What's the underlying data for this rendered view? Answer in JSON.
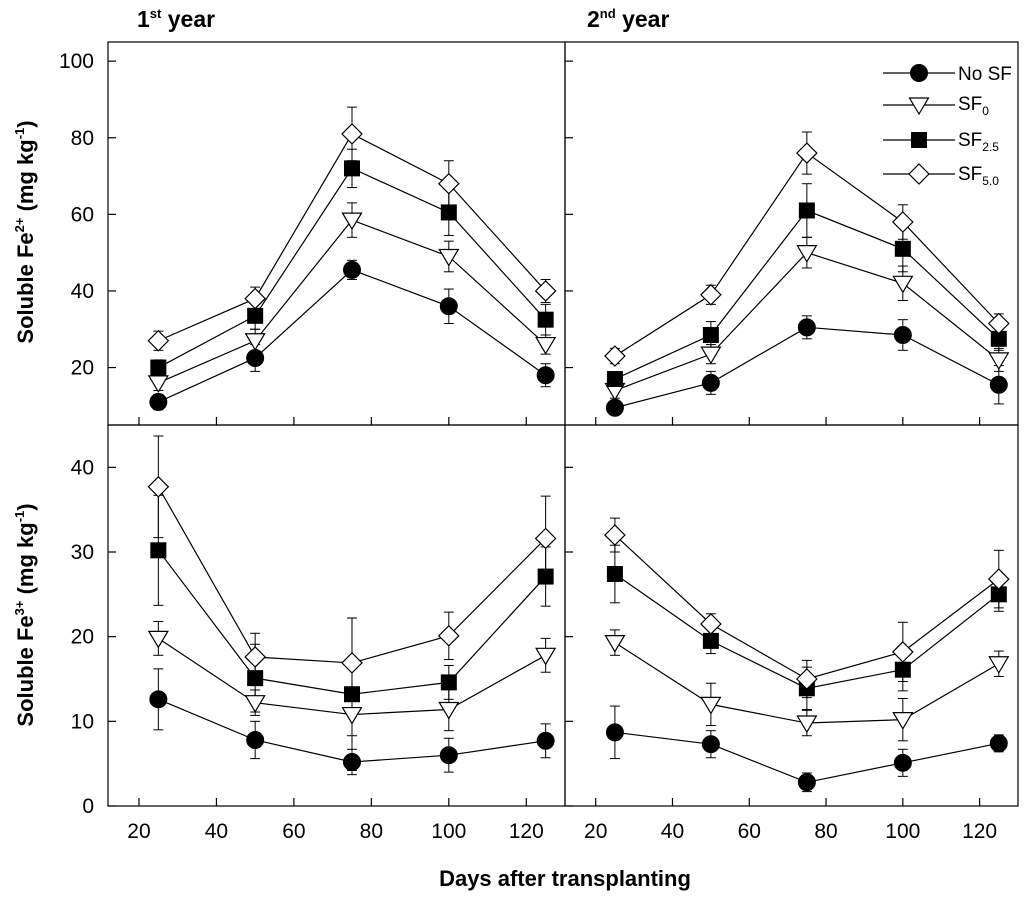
{
  "chart_data": {
    "type": "line",
    "title_1": {
      "base": "1",
      "sup": "st",
      "rest": " year"
    },
    "title_2": {
      "base": "2",
      "sup": "nd",
      "rest": " year"
    },
    "xlabel": "Days after transplanting",
    "ylabel_top": {
      "pre": "Soluble Fe",
      "sup": "2+",
      "post": " (mg kg",
      "unit_sup": "-1",
      "end": ")"
    },
    "ylabel_bottom": {
      "pre": "Soluble Fe",
      "sup": "3+",
      "post": " (mg kg",
      "unit_sup": "-1",
      "end": ")"
    },
    "x": [
      25,
      50,
      75,
      100,
      125
    ],
    "xlim": [
      12,
      130
    ],
    "x_ticks": [
      20,
      40,
      60,
      80,
      100,
      120
    ],
    "top_ylim": [
      5,
      105
    ],
    "top_y_ticks": [
      20,
      40,
      60,
      80,
      100
    ],
    "bottom_ylim": [
      0,
      45
    ],
    "bottom_y_ticks": [
      0,
      10,
      20,
      30,
      40
    ],
    "legend": [
      {
        "key": "nosf",
        "base": "No SF",
        "sub": ""
      },
      {
        "key": "sf0",
        "base": "SF",
        "sub": "0"
      },
      {
        "key": "sf25",
        "base": "SF",
        "sub": "2.5"
      },
      {
        "key": "sf50",
        "base": "SF",
        "sub": "5.0"
      }
    ],
    "panels": [
      {
        "id": "top-left",
        "series": [
          {
            "key": "nosf",
            "values": [
              11,
              22.5,
              45.5,
              36,
              18
            ],
            "errors": [
              2,
              3.5,
              2.5,
              4.5,
              3
            ]
          },
          {
            "key": "sf0",
            "values": [
              16,
              27,
              58.5,
              49,
              26
            ],
            "errors": [
              2,
              3,
              4.5,
              4,
              2.5
            ]
          },
          {
            "key": "sf25",
            "values": [
              20,
              33.5,
              72,
              60.5,
              32.5
            ],
            "errors": [
              2,
              3.5,
              5,
              6,
              4
            ]
          },
          {
            "key": "sf50",
            "values": [
              27,
              38,
              81,
              68,
              40
            ],
            "errors": [
              2.5,
              3,
              7,
              6,
              3
            ]
          }
        ]
      },
      {
        "id": "top-right",
        "series": [
          {
            "key": "nosf",
            "values": [
              9.5,
              16,
              30.5,
              28.5,
              15.5
            ],
            "errors": [
              1.5,
              3,
              3,
              4,
              5
            ]
          },
          {
            "key": "sf0",
            "values": [
              14,
              23.5,
              50,
              42,
              22
            ],
            "errors": [
              2,
              2.5,
              4,
              4.5,
              3
            ]
          },
          {
            "key": "sf25",
            "values": [
              17,
              28.5,
              61,
              51,
              27.5
            ],
            "errors": [
              1.5,
              3.5,
              7,
              6,
              3
            ]
          },
          {
            "key": "sf50",
            "values": [
              23,
              39,
              76,
              58,
              31.5
            ],
            "errors": [
              2,
              2.5,
              5.5,
              4.5,
              2.5
            ]
          }
        ]
      },
      {
        "id": "bottom-left",
        "series": [
          {
            "key": "nosf",
            "values": [
              12.6,
              7.8,
              5.2,
              6,
              7.7
            ],
            "errors": [
              3.6,
              2.2,
              1.5,
              2,
              2
            ]
          },
          {
            "key": "sf0",
            "values": [
              19.8,
              12.2,
              10.8,
              11.4,
              17.8
            ],
            "errors": [
              2,
              1.5,
              2.5,
              2.5,
              2
            ]
          },
          {
            "key": "sf25",
            "values": [
              30.2,
              15.1,
              13.2,
              14.6,
              27.1
            ],
            "errors": [
              6.5,
              4,
              9,
              2,
              3.5
            ]
          },
          {
            "key": "sf50",
            "values": [
              37.7,
              17.6,
              16.9,
              20.1,
              31.6
            ],
            "errors": [
              6,
              2.8,
              5.3,
              2.8,
              5
            ]
          }
        ]
      },
      {
        "id": "bottom-right",
        "series": [
          {
            "key": "nosf",
            "values": [
              8.7,
              7.3,
              2.8,
              5.1,
              7.4
            ],
            "errors": [
              3.1,
              1.6,
              1.1,
              1.6,
              1
            ]
          },
          {
            "key": "sf0",
            "values": [
              19.3,
              12,
              9.8,
              10.2,
              16.8
            ],
            "errors": [
              1.5,
              2.5,
              1.5,
              2.5,
              1.5
            ]
          },
          {
            "key": "sf25",
            "values": [
              27.4,
              19.5,
              13.9,
              16.1,
              25
            ],
            "errors": [
              3.4,
              1.5,
              2.5,
              2.5,
              2
            ]
          },
          {
            "key": "sf50",
            "values": [
              32,
              21.5,
              15,
              18.2,
              26.8
            ],
            "errors": [
              2,
              1.2,
              2.2,
              3.5,
              3.4
            ]
          }
        ]
      }
    ]
  }
}
